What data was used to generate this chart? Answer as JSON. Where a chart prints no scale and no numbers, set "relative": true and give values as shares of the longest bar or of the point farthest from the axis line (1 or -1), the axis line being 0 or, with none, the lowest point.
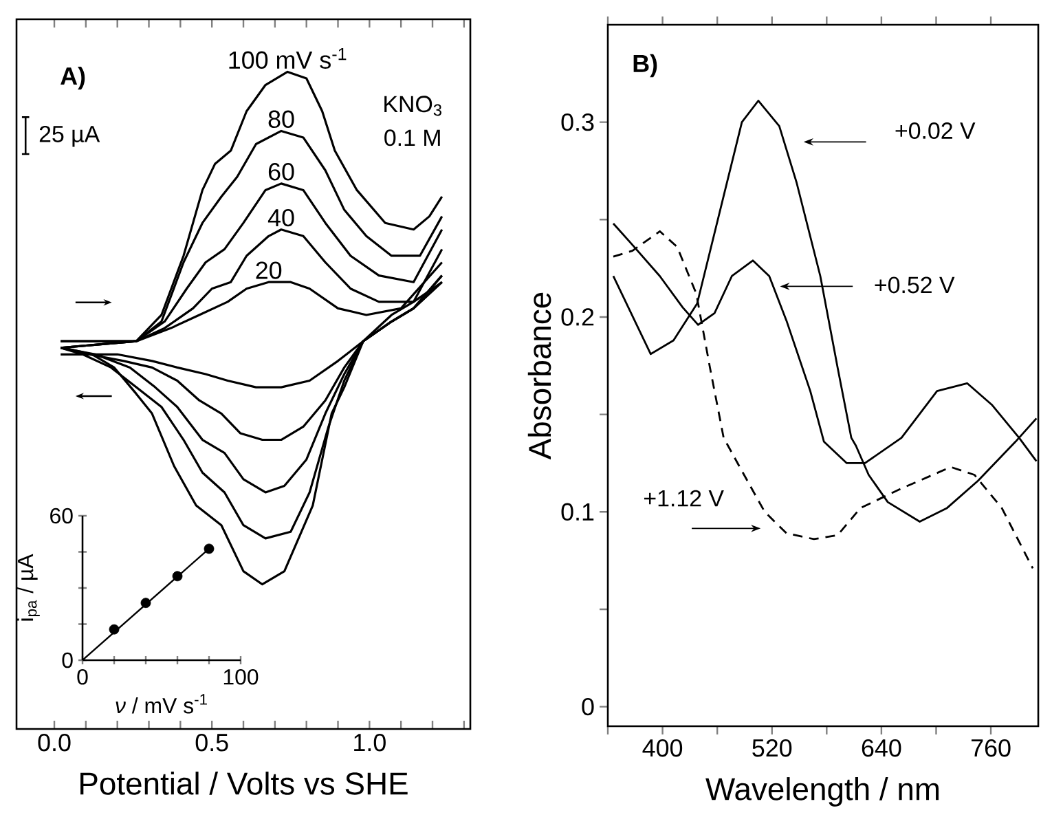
{
  "chart_data": [
    {
      "type": "line",
      "title": "A)",
      "xlabel": "Potential / Volts vs SHE",
      "relative": true,
      "xlim": [
        -0.12,
        1.32
      ],
      "xticks": [
        {
          "value": 0,
          "label": "0.0"
        },
        {
          "value": 0.1,
          "label": null
        },
        {
          "value": 0.2,
          "label": null
        },
        {
          "value": 0.3,
          "label": null
        },
        {
          "value": 0.4,
          "label": null
        },
        0.5,
        {
          "value": 0.6,
          "label": null
        },
        {
          "value": 0.7,
          "label": null
        },
        {
          "value": 0.8,
          "label": null
        },
        {
          "value": 0.9,
          "label": null
        },
        {
          "value": 1,
          "label": "1.0"
        },
        {
          "value": 1.1,
          "label": null
        },
        {
          "value": 1.2,
          "label": null
        },
        {
          "value": 1.3,
          "label": null
        }
      ],
      "legend": false,
      "annotations": [
        "25 µA",
        "KNO$_{3}$",
        "0.1 M"
      ],
      "series": [
        {
          "name": "100 mV s$^{-1}$",
          "color": "#000000",
          "x": [
            0.02,
            0.26,
            0.34,
            0.41,
            0.47,
            0.51,
            0.56,
            0.61,
            0.67,
            0.74,
            0.8,
            0.85,
            0.89,
            0.96,
            1.05,
            1.14,
            1.19,
            1.23
          ],
          "values": [
            0.59,
            0.59,
            0.63,
            0.72,
            0.82,
            0.86,
            0.88,
            0.94,
            0.98,
            1.0,
            0.99,
            0.94,
            0.88,
            0.82,
            0.77,
            0.76,
            0.78,
            0.81
          ]
        },
        {
          "color": "#000000",
          "x": [
            1.23,
            1.14,
            1.07,
            0.98,
            0.92,
            0.88,
            0.82,
            0.73,
            0.66,
            0.6,
            0.53,
            0.45,
            0.38,
            0.31,
            0.26,
            0.19,
            0.12,
            0.03
          ],
          "values": [
            0.68,
            0.65,
            0.63,
            0.59,
            0.52,
            0.48,
            0.34,
            0.24,
            0.22,
            0.24,
            0.31,
            0.34,
            0.4,
            0.48,
            0.51,
            0.55,
            0.57,
            0.58
          ]
        },
        {
          "name": "80",
          "color": "#000000",
          "x": [
            0.02,
            0.26,
            0.34,
            0.41,
            0.47,
            0.53,
            0.58,
            0.64,
            0.72,
            0.79,
            0.86,
            0.92,
            0.99,
            1.07,
            1.16,
            1.23
          ],
          "values": [
            0.59,
            0.59,
            0.62,
            0.71,
            0.77,
            0.81,
            0.84,
            0.89,
            0.91,
            0.9,
            0.85,
            0.79,
            0.75,
            0.72,
            0.72,
            0.78
          ]
        },
        {
          "color": "#000000",
          "x": [
            1.23,
            1.14,
            1.07,
            0.98,
            0.92,
            0.87,
            0.81,
            0.75,
            0.67,
            0.6,
            0.54,
            0.47,
            0.41,
            0.34,
            0.26,
            0.18,
            0.09,
            0.02
          ],
          "values": [
            0.68,
            0.64,
            0.62,
            0.59,
            0.53,
            0.46,
            0.36,
            0.3,
            0.29,
            0.31,
            0.36,
            0.39,
            0.44,
            0.49,
            0.52,
            0.55,
            0.57,
            0.58
          ]
        },
        {
          "name": "60",
          "color": "#000000",
          "x": [
            0.02,
            0.26,
            0.35,
            0.42,
            0.48,
            0.54,
            0.6,
            0.67,
            0.72,
            0.79,
            0.86,
            0.94,
            1.03,
            1.14,
            1.23
          ],
          "values": [
            0.58,
            0.59,
            0.62,
            0.67,
            0.71,
            0.73,
            0.77,
            0.82,
            0.83,
            0.82,
            0.77,
            0.72,
            0.69,
            0.68,
            0.76
          ]
        },
        {
          "color": "#000000",
          "x": [
            1.23,
            1.14,
            1.07,
            0.98,
            0.92,
            0.86,
            0.8,
            0.73,
            0.67,
            0.6,
            0.54,
            0.47,
            0.39,
            0.32,
            0.24,
            0.13,
            0.02
          ],
          "values": [
            0.68,
            0.64,
            0.62,
            0.59,
            0.54,
            0.48,
            0.41,
            0.37,
            0.36,
            0.38,
            0.42,
            0.44,
            0.49,
            0.52,
            0.55,
            0.57,
            0.58
          ]
        },
        {
          "name": "40",
          "color": "#000000",
          "x": [
            0.02,
            0.26,
            0.35,
            0.44,
            0.5,
            0.56,
            0.61,
            0.68,
            0.72,
            0.79,
            0.86,
            0.94,
            1.03,
            1.14,
            1.23
          ],
          "values": [
            0.58,
            0.59,
            0.61,
            0.64,
            0.67,
            0.68,
            0.72,
            0.75,
            0.76,
            0.75,
            0.71,
            0.67,
            0.65,
            0.65,
            0.73
          ]
        },
        {
          "color": "#000000",
          "x": [
            1.23,
            1.14,
            1.07,
            0.98,
            0.92,
            0.86,
            0.79,
            0.72,
            0.66,
            0.59,
            0.53,
            0.46,
            0.39,
            0.31,
            0.22,
            0.11,
            0.02
          ],
          "values": [
            0.69,
            0.64,
            0.62,
            0.59,
            0.55,
            0.5,
            0.46,
            0.44,
            0.44,
            0.45,
            0.48,
            0.5,
            0.53,
            0.55,
            0.56,
            0.57,
            0.58
          ]
        },
        {
          "name": "20",
          "color": "#000000",
          "x": [
            0.02,
            0.26,
            0.37,
            0.46,
            0.55,
            0.61,
            0.68,
            0.75,
            0.81,
            0.9,
            0.99,
            1.1,
            1.23
          ],
          "values": [
            0.58,
            0.59,
            0.61,
            0.63,
            0.65,
            0.67,
            0.68,
            0.68,
            0.67,
            0.64,
            0.63,
            0.64,
            0.71
          ]
        },
        {
          "color": "#000000",
          "x": [
            1.23,
            1.14,
            1.07,
            0.98,
            0.9,
            0.81,
            0.72,
            0.64,
            0.55,
            0.48,
            0.39,
            0.31,
            0.2,
            0.02
          ],
          "values": [
            0.69,
            0.64,
            0.62,
            0.59,
            0.56,
            0.53,
            0.52,
            0.52,
            0.53,
            0.54,
            0.55,
            0.56,
            0.57,
            0.57
          ]
        }
      ]
    },
    {
      "type": "scatter",
      "xlabel": "*ν* / mV s$^{-1}$",
      "ylabel": "i$_{pa}$ / µA",
      "xlim": [
        0,
        100
      ],
      "ylim": [
        0,
        60
      ],
      "xticks": [
        0,
        {
          "value": 20,
          "label": null
        },
        {
          "value": 40,
          "label": null
        },
        {
          "value": 60,
          "label": null
        },
        {
          "value": 80,
          "label": null
        },
        100
      ],
      "yticks": [
        0,
        {
          "value": 15,
          "label": null
        },
        {
          "value": 30,
          "label": null
        },
        {
          "value": 45,
          "label": null
        },
        60
      ],
      "legend": false,
      "marker": "circle",
      "series": [
        {
          "type": "scatter",
          "color": "#000000",
          "x": [
            20,
            40,
            60,
            80
          ],
          "values": [
            12.8,
            23.8,
            34.9,
            46.3
          ]
        },
        {
          "type": "line",
          "marker": "none",
          "color": "#000000",
          "x": [
            0,
            80
          ],
          "values": [
            0,
            46.3
          ]
        }
      ]
    },
    {
      "type": "line",
      "title": "B)",
      "xlabel": "Wavelength / nm",
      "ylabel": "Absorbance",
      "xlim": [
        340,
        812
      ],
      "ylim": [
        -0.01,
        0.35
      ],
      "xticks": [
        {
          "value": 340,
          "label": null
        },
        400,
        {
          "value": 460,
          "label": null
        },
        520,
        {
          "value": 580,
          "label": null
        },
        640,
        {
          "value": 700,
          "label": null
        },
        760
      ],
      "yticks": [
        0,
        {
          "value": 0.05,
          "label": null
        },
        0.1,
        {
          "value": 0.15,
          "label": null
        },
        0.2,
        {
          "value": 0.25,
          "label": null
        },
        0.3
      ],
      "legend": false,
      "annotations": [
        "+0.02 V",
        "+0.52 V",
        "+1.12 V"
      ],
      "series": [
        {
          "color": "#000000",
          "x": [
            346,
            387,
            412,
            438,
            468,
            487,
            505,
            528,
            547,
            573,
            592,
            607,
            612,
            626,
            647,
            682,
            712,
            746,
            787,
            810
          ],
          "values": [
            0.221,
            0.181,
            0.188,
            0.207,
            0.264,
            0.3,
            0.311,
            0.298,
            0.269,
            0.221,
            0.174,
            0.138,
            0.134,
            0.119,
            0.105,
            0.095,
            0.102,
            0.116,
            0.136,
            0.148
          ]
        },
        {
          "color": "#000000",
          "x": [
            346,
            367,
            397,
            422,
            439,
            457,
            476,
            499,
            517,
            536,
            562,
            577,
            602,
            622,
            662,
            701,
            734,
            761,
            791,
            810
          ],
          "values": [
            0.248,
            0.237,
            0.221,
            0.205,
            0.196,
            0.202,
            0.221,
            0.229,
            0.221,
            0.198,
            0.162,
            0.136,
            0.125,
            0.125,
            0.138,
            0.162,
            0.166,
            0.155,
            0.138,
            0.126
          ]
        },
        {
          "color": "#000000",
          "line_style": "dashed",
          "x": [
            346,
            367,
            397,
            416,
            437,
            452,
            467,
            487,
            512,
            536,
            566,
            592,
            617,
            662,
            716,
            742,
            772,
            806
          ],
          "values": [
            0.231,
            0.234,
            0.244,
            0.236,
            0.212,
            0.174,
            0.138,
            0.121,
            0.1,
            0.089,
            0.086,
            0.088,
            0.102,
            0.112,
            0.123,
            0.119,
            0.102,
            0.071
          ]
        }
      ]
    }
  ]
}
